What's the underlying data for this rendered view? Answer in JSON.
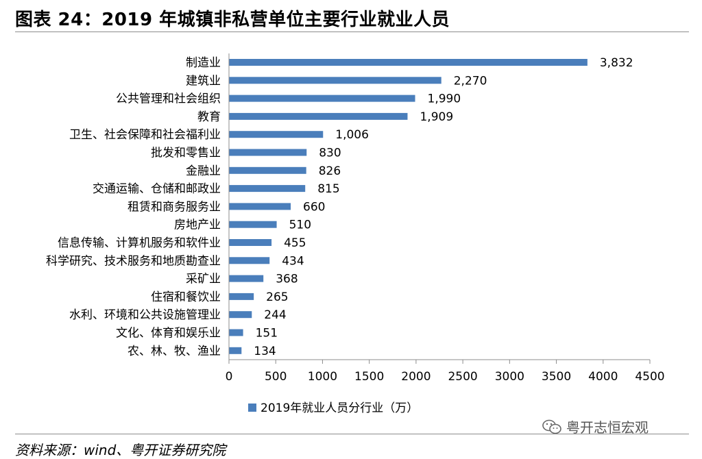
{
  "title": "图表 24：2019 年城镇非私营单位主要行业就业人员",
  "chart_data": {
    "type": "bar",
    "orientation": "horizontal",
    "categories": [
      "制造业",
      "建筑业",
      "公共管理和社会组织",
      "教育",
      "卫生、社会保障和社会福利业",
      "批发和零售业",
      "金融业",
      "交通运输、仓储和邮政业",
      "租赁和商务服务业",
      "房地产业",
      "信息传输、计算机服务和软件业",
      "科学研究、技术服务和地质勘查业",
      "采矿业",
      "住宿和餐饮业",
      "水利、环境和公共设施管理业",
      "文化、体育和娱乐业",
      "农、林、牧、渔业"
    ],
    "values": [
      3832,
      2270,
      1990,
      1909,
      1006,
      830,
      826,
      815,
      660,
      510,
      455,
      434,
      368,
      265,
      244,
      151,
      134
    ],
    "value_labels": [
      "3,832",
      "2,270",
      "1,990",
      "1,909",
      "1,006",
      "830",
      "826",
      "815",
      "660",
      "510",
      "455",
      "434",
      "368",
      "265",
      "244",
      "151",
      "134"
    ],
    "xlim": [
      0,
      4500
    ],
    "xticks": [
      0,
      500,
      1000,
      1500,
      2000,
      2500,
      3000,
      3500,
      4000,
      4500
    ],
    "xtick_labels": [
      "0",
      "500",
      "1000",
      "1500",
      "2000",
      "2500",
      "3000",
      "3500",
      "4000",
      "4500"
    ],
    "series_name": "2019年就业人员分行业（万）",
    "legend_position": "bottom-left",
    "grid": false
  },
  "colors": {
    "bar": "#4a7ebb",
    "axis": "#8c8c8c",
    "text": "#000000"
  },
  "source": "资料来源：wind、粤开证券研究院",
  "watermark": {
    "icon": "wechat-icon",
    "text": "粤开志恒宏观"
  }
}
